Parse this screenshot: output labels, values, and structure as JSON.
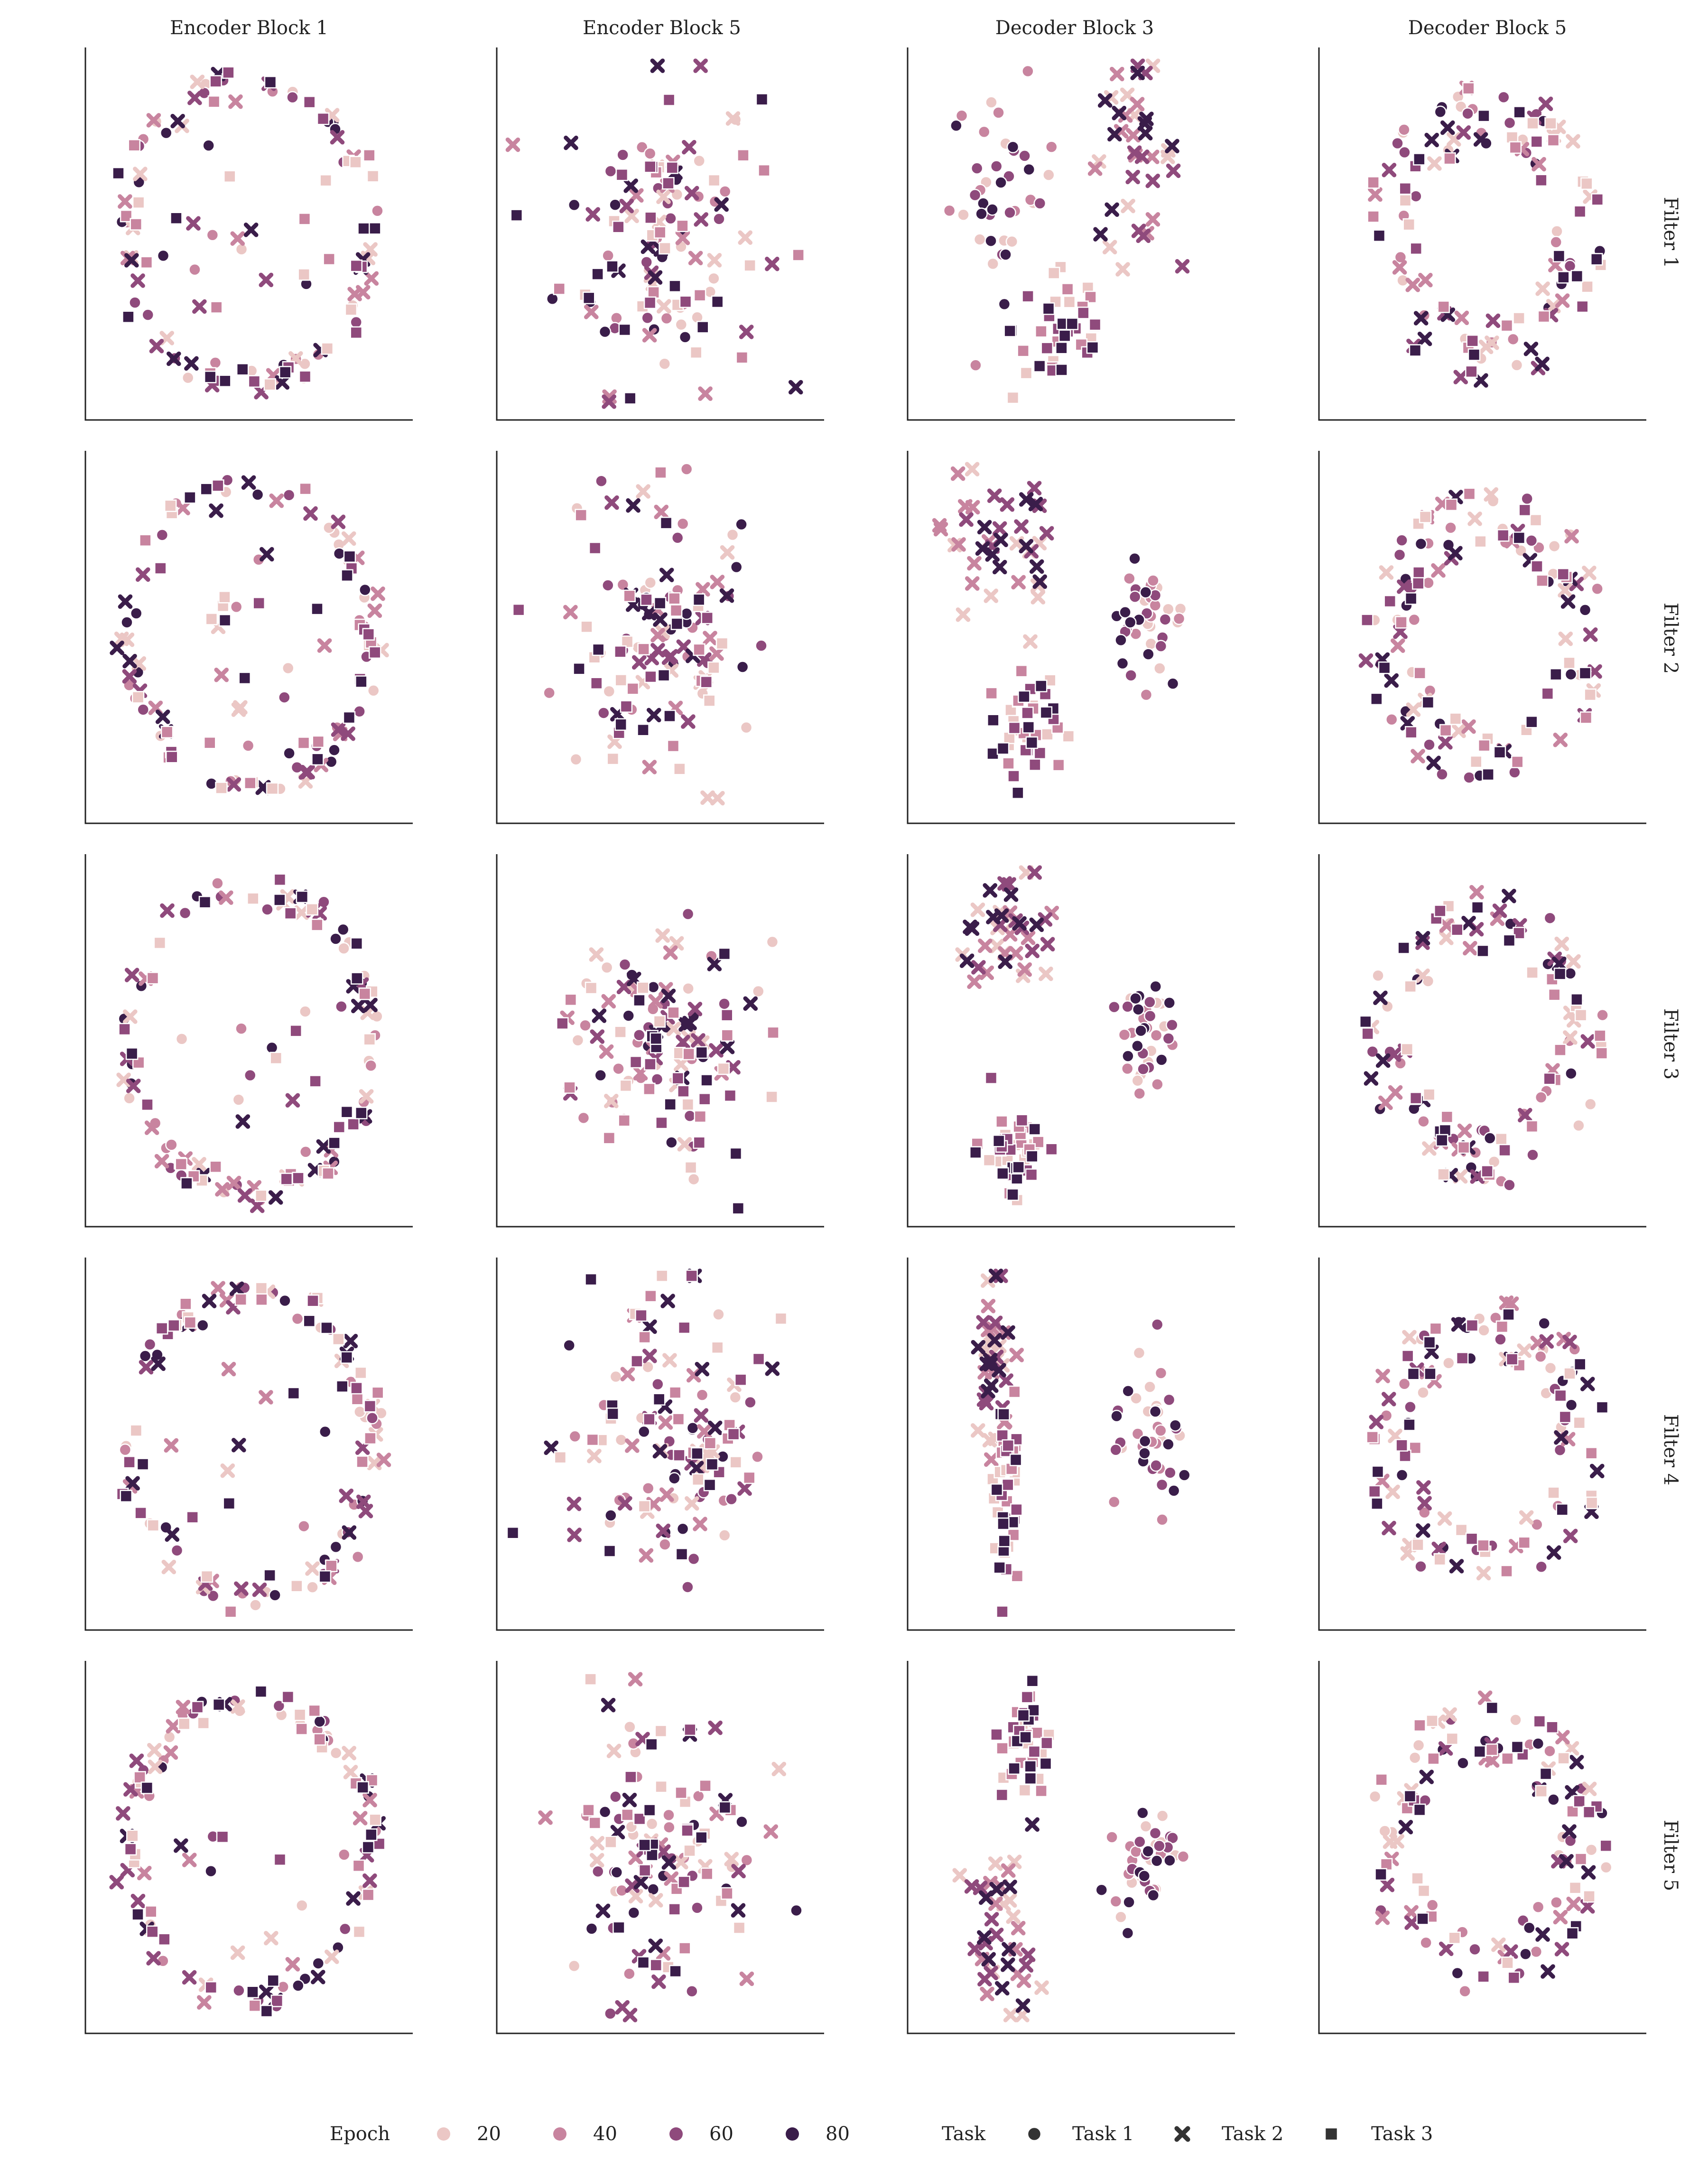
{
  "chart_data": {
    "type": "scatter",
    "column_titles": [
      "Encoder Block 1",
      "Encoder Block 5",
      "Decoder Block 3",
      "Decoder Block 5"
    ],
    "row_titles": [
      "Filter 1",
      "Filter 2",
      "Filter 3",
      "Filter 4",
      "Filter 5"
    ],
    "legend": {
      "hue_title": "Epoch",
      "hue_levels": [
        "20",
        "40",
        "60",
        "80"
      ],
      "hue_colors": [
        "#ebc7c5",
        "#c8849f",
        "#8f4a7c",
        "#3a1d4a"
      ],
      "style_title": "Task",
      "style_levels": [
        "Task 1",
        "Task 2",
        "Task 3"
      ],
      "style_markers": [
        "circle",
        "cross",
        "square"
      ]
    },
    "axis_ranges": {
      "x": [
        -1,
        1
      ],
      "y": [
        -1,
        1
      ]
    },
    "ticks": "none",
    "grid": false,
    "legend_placement": "bottom",
    "panel_layouts": [
      [
        "ring",
        "blob",
        "three_clusters_a",
        "ring_open"
      ],
      [
        "ring",
        "blob",
        "three_clusters_b",
        "ring_open"
      ],
      [
        "ring",
        "blob_small",
        "three_clusters_c",
        "ring_open"
      ],
      [
        "ring",
        "blob",
        "two_columns",
        "ring_open"
      ],
      [
        "ring",
        "blob",
        "two_columns_b",
        "ring_open"
      ]
    ],
    "points_per_task_per_epoch": 10
  }
}
